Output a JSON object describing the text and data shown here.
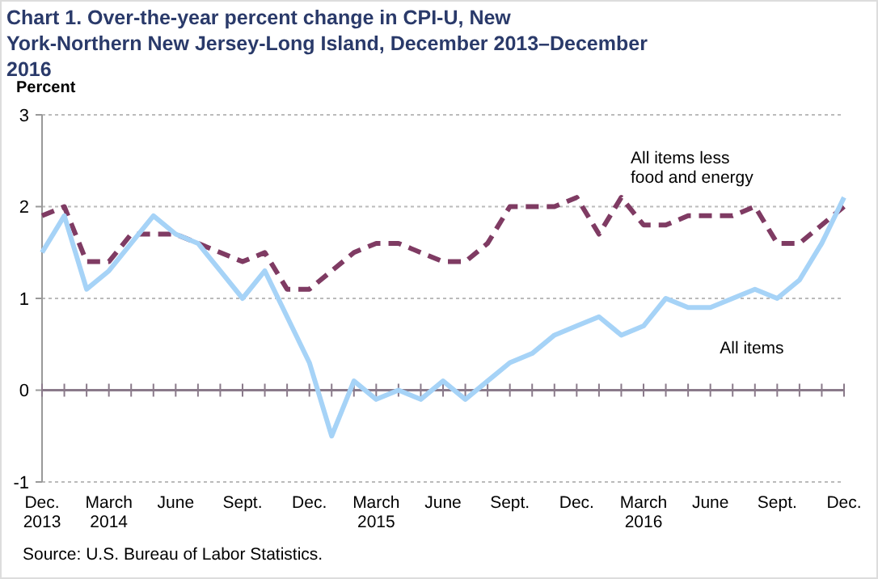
{
  "chart_data": {
    "type": "line",
    "title": "Chart 1.  Over-the-year percent change in CPI-U, New York-Northern New Jersey-Long Island, December 2013–December 2016",
    "ylabel": "Percent",
    "categories": [
      "Dec.\n2013",
      null,
      null,
      "March\n2014",
      null,
      null,
      "June",
      null,
      null,
      "Sept.",
      null,
      null,
      "Dec.",
      null,
      null,
      "March\n2015",
      null,
      null,
      "June",
      null,
      null,
      "Sept.",
      null,
      null,
      "Dec.",
      null,
      null,
      "March\n2016",
      null,
      null,
      "June",
      null,
      null,
      "Sept.",
      null,
      null,
      "Dec."
    ],
    "series": [
      {
        "name": "All items less food and energy",
        "color": "#7f3b63",
        "line_style": "dashed",
        "values": [
          1.9,
          2.0,
          1.4,
          1.4,
          1.7,
          1.7,
          1.7,
          1.6,
          1.5,
          1.4,
          1.5,
          1.1,
          1.1,
          1.3,
          1.5,
          1.6,
          1.6,
          1.5,
          1.4,
          1.4,
          1.6,
          2.0,
          2.0,
          2.0,
          2.1,
          1.7,
          2.1,
          1.8,
          1.8,
          1.9,
          1.9,
          1.9,
          2.0,
          1.6,
          1.6,
          1.8,
          2.0
        ]
      },
      {
        "name": "All items",
        "color": "#a6d3f7",
        "line_style": "solid",
        "values": [
          1.5,
          1.9,
          1.1,
          1.3,
          1.6,
          1.9,
          1.7,
          1.6,
          1.3,
          1.0,
          1.3,
          0.8,
          0.3,
          -0.5,
          0.1,
          -0.1,
          0.0,
          -0.1,
          0.1,
          -0.1,
          0.1,
          0.3,
          0.4,
          0.6,
          0.7,
          0.8,
          0.6,
          0.7,
          1.0,
          0.9,
          0.9,
          1.0,
          1.1,
          1.0,
          1.2,
          1.6,
          2.1
        ]
      }
    ],
    "ylim": [
      -1,
      3
    ],
    "yticks": [
      -1,
      0,
      1,
      2,
      3
    ],
    "grid": "y",
    "legend": false,
    "marker": "none",
    "annotations": [
      "Source: U.S. Bureau of Labor Statistics."
    ]
  }
}
